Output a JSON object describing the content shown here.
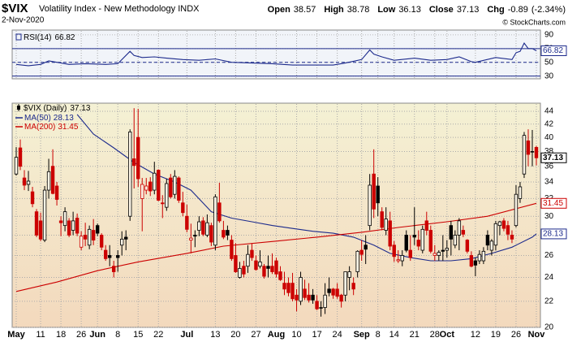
{
  "header": {
    "symbol": "$VIX",
    "name": "Volatility Index - New Methodology INDX",
    "date": "2-Nov-2020",
    "quote": [
      {
        "label": "Open",
        "value": 38.57
      },
      {
        "label": "High",
        "value": 38.78
      },
      {
        "label": "Low",
        "value": 36.13
      },
      {
        "label": "Close",
        "value": 37.13
      },
      {
        "label": "Chg",
        "value": -0.89
      }
    ],
    "change_pct": "(-2.34%)",
    "copyright": "© StockCharts.com"
  },
  "chart_data": [
    {
      "type": "line",
      "title": "RSI(14)",
      "color": "#1c2a8c",
      "ylim": [
        26,
        97
      ],
      "yticks": [
        30,
        50,
        70,
        90
      ],
      "levels": [
        {
          "value": 70,
          "style": "solid"
        },
        {
          "value": 50,
          "style": "dashed"
        },
        {
          "value": 30,
          "style": "solid"
        }
      ],
      "x": [
        "May 1",
        "May 6",
        "May 11",
        "May 13",
        "May 15",
        "May 20",
        "May 27",
        "Jun 3",
        "Jun 8",
        "Jun 11",
        "Jun 12",
        "Jun 16",
        "Jun 19",
        "Jun 24",
        "Jun 30",
        "Jul 7",
        "Jul 13",
        "Jul 17",
        "Jul 24",
        "Jul 31",
        "Aug 7",
        "Aug 14",
        "Aug 21",
        "Aug 26",
        "Sep 1",
        "Sep 3",
        "Sep 4",
        "Sep 9",
        "Sep 14",
        "Sep 21",
        "Sep 25",
        "Oct 1",
        "Oct 6",
        "Oct 9",
        "Oct 12",
        "Oct 19",
        "Oct 23",
        "Oct 26",
        "Oct 27",
        "Oct 28",
        "Oct 29",
        "Oct 30",
        "Nov 2"
      ],
      "values": [
        47,
        45,
        47,
        52,
        50,
        47,
        48,
        47,
        48,
        66,
        60,
        57,
        58,
        56,
        54,
        53,
        55,
        50,
        49,
        48,
        46,
        46,
        46,
        49,
        54,
        68,
        62,
        58,
        53,
        56,
        53,
        54,
        58,
        51,
        50,
        57,
        54,
        64,
        66,
        78,
        70,
        70,
        66.82
      ]
    },
    {
      "type": "candlestick",
      "name": "$VIX (Daily)",
      "log_scale": true,
      "grid": true,
      "up_color": "#000000",
      "down_color": "#cc0000",
      "ylim": [
        20,
        44
      ],
      "yticks": [
        20,
        22,
        24,
        26,
        28,
        30,
        32,
        34,
        36,
        38,
        40,
        42,
        44
      ],
      "categories": [
        "May 1",
        "May 4",
        "May 5",
        "May 6",
        "May 7",
        "May 8",
        "May 11",
        "May 12",
        "May 13",
        "May 14",
        "May 15",
        "May 18",
        "May 19",
        "May 20",
        "May 21",
        "May 22",
        "May 26",
        "May 27",
        "May 28",
        "May 29",
        "Jun 1",
        "Jun 2",
        "Jun 3",
        "Jun 4",
        "Jun 5",
        "Jun 8",
        "Jun 9",
        "Jun 10",
        "Jun 11",
        "Jun 12",
        "Jun 15",
        "Jun 16",
        "Jun 17",
        "Jun 18",
        "Jun 19",
        "Jun 22",
        "Jun 23",
        "Jun 24",
        "Jun 25",
        "Jun 26",
        "Jun 29",
        "Jun 30",
        "Jul 1",
        "Jul 2",
        "Jul 6",
        "Jul 7",
        "Jul 8",
        "Jul 9",
        "Jul 10",
        "Jul 13",
        "Jul 14",
        "Jul 15",
        "Jul 16",
        "Jul 17",
        "Jul 20",
        "Jul 21",
        "Jul 22",
        "Jul 23",
        "Jul 24",
        "Jul 27",
        "Jul 28",
        "Jul 29",
        "Jul 30",
        "Jul 31",
        "Aug 3",
        "Aug 4",
        "Aug 5",
        "Aug 6",
        "Aug 7",
        "Aug 10",
        "Aug 11",
        "Aug 12",
        "Aug 13",
        "Aug 14",
        "Aug 17",
        "Aug 18",
        "Aug 19",
        "Aug 20",
        "Aug 21",
        "Aug 24",
        "Aug 25",
        "Aug 26",
        "Aug 27",
        "Aug 28",
        "Aug 31",
        "Sep 1",
        "Sep 2",
        "Sep 3",
        "Sep 4",
        "Sep 8",
        "Sep 9",
        "Sep 10",
        "Sep 11",
        "Sep 14",
        "Sep 15",
        "Sep 16",
        "Sep 17",
        "Sep 18",
        "Sep 21",
        "Sep 22",
        "Sep 23",
        "Sep 24",
        "Sep 25",
        "Sep 28",
        "Sep 29",
        "Sep 30",
        "Oct 1",
        "Oct 2",
        "Oct 5",
        "Oct 6",
        "Oct 7",
        "Oct 8",
        "Oct 9",
        "Oct 12",
        "Oct 13",
        "Oct 14",
        "Oct 15",
        "Oct 16",
        "Oct 19",
        "Oct 20",
        "Oct 21",
        "Oct 22",
        "Oct 23",
        "Oct 26",
        "Oct 27",
        "Oct 28",
        "Oct 29",
        "Oct 30",
        "Nov 2"
      ],
      "xticks": [
        {
          "value": "May 1",
          "label": "May"
        },
        {
          "value": "May 11",
          "label": "11"
        },
        {
          "value": "May 18",
          "label": "18"
        },
        {
          "value": "May 26",
          "label": "26"
        },
        {
          "value": "Jun 1",
          "label": "Jun"
        },
        {
          "value": "Jun 8",
          "label": "8"
        },
        {
          "value": "Jun 15",
          "label": "15"
        },
        {
          "value": "Jun 22",
          "label": "22"
        },
        {
          "value": "Jul 1",
          "label": "Jul"
        },
        {
          "value": "Jul 13",
          "label": "13"
        },
        {
          "value": "Jul 20",
          "label": "20"
        },
        {
          "value": "Jul 27",
          "label": "27"
        },
        {
          "value": "Aug 3",
          "label": "Aug"
        },
        {
          "value": "Aug 10",
          "label": "10"
        },
        {
          "value": "Aug 17",
          "label": "17"
        },
        {
          "value": "Aug 24",
          "label": "24"
        },
        {
          "value": "Sep 1",
          "label": "Sep"
        },
        {
          "value": "Sep 8",
          "label": "8"
        },
        {
          "value": "Sep 14",
          "label": "14"
        },
        {
          "value": "Sep 21",
          "label": "21"
        },
        {
          "value": "Sep 28",
          "label": "28"
        },
        {
          "value": "Oct 1",
          "label": "Oct"
        },
        {
          "value": "Oct 12",
          "label": "12"
        },
        {
          "value": "Oct 19",
          "label": "19"
        },
        {
          "value": "Oct 26",
          "label": "26"
        },
        {
          "value": "Nov 2",
          "label": "Nov"
        }
      ],
      "open": [
        35.0,
        38.5,
        34.5,
        33.7,
        32.8,
        30.5,
        29.5,
        27.5,
        33.0,
        36.0,
        33.5,
        29.5,
        29.0,
        29.5,
        28.5,
        29.8,
        26.8,
        28.0,
        27.0,
        28.5,
        29.0,
        28.0,
        26.5,
        26.0,
        25.0,
        26.0,
        27.0,
        27.8,
        30.0,
        37.0,
        40.0,
        32.0,
        33.0,
        34.0,
        33.0,
        35.5,
        31.5,
        31.0,
        34.5,
        32.5,
        34.5,
        31.5,
        30.0,
        27.5,
        28.0,
        28.5,
        29.5,
        28.0,
        29.0,
        27.0,
        31.5,
        28.5,
        28.5,
        27.5,
        26.0,
        24.0,
        25.0,
        25.0,
        26.5,
        25.5,
        25.0,
        25.0,
        25.0,
        25.0,
        25.5,
        24.5,
        23.5,
        23.5,
        23.5,
        22.5,
        22.0,
        23.0,
        22.5,
        22.5,
        22.0,
        21.5,
        21.5,
        23.0,
        23.0,
        23.0,
        22.5,
        22.5,
        24.0,
        23.5,
        24.5,
        26.5,
        27.0,
        29.0,
        35.0,
        33.5,
        30.5,
        28.5,
        29.5,
        27.0,
        25.5,
        25.5,
        28.0,
        26.5,
        28.0,
        27.5,
        26.5,
        29.5,
        28.5,
        26.0,
        26.0,
        26.5,
        26.5,
        29.0,
        27.0,
        28.0,
        28.5,
        27.5,
        26.0,
        25.5,
        25.5,
        25.5,
        28.0,
        26.5,
        27.0,
        29.0,
        29.5,
        29.0,
        28.0,
        29.0,
        32.0,
        35.0,
        39.5,
        38.0,
        38.57
      ],
      "high": [
        38.6,
        39.7,
        35.5,
        35.4,
        33.4,
        30.8,
        30.4,
        33.5,
        37.0,
        38.3,
        34.0,
        30.0,
        31.0,
        29.8,
        30.5,
        30.3,
        28.4,
        29.3,
        29.0,
        29.7,
        29.2,
        28.2,
        27.0,
        27.0,
        25.5,
        26.5,
        28.4,
        28.5,
        41.2,
        44.5,
        44.4,
        34.5,
        34.5,
        34.6,
        36.6,
        35.6,
        32.4,
        34.4,
        35.0,
        35.5,
        34.7,
        32.8,
        31.3,
        29.2,
        28.5,
        30.0,
        29.9,
        30.2,
        29.3,
        32.5,
        33.9,
        29.5,
        29.0,
        28.0,
        27.2,
        25.4,
        25.5,
        27.0,
        27.2,
        26.0,
        26.5,
        25.2,
        26.0,
        26.2,
        25.8,
        25.0,
        24.5,
        24.0,
        24.4,
        23.0,
        24.5,
        23.8,
        23.5,
        23.0,
        22.5,
        22.0,
        23.5,
        24.0,
        23.1,
        23.5,
        22.6,
        24.5,
        25.0,
        24.0,
        26.5,
        27.5,
        28.0,
        35.0,
        38.3,
        34.6,
        31.0,
        31.0,
        30.5,
        27.4,
        26.5,
        26.5,
        28.5,
        28.0,
        31.0,
        28.5,
        29.0,
        30.5,
        29.0,
        27.0,
        26.5,
        28.0,
        27.5,
        29.5,
        28.5,
        29.8,
        29.0,
        27.6,
        26.4,
        25.8,
        26.5,
        26.8,
        28.5,
        27.6,
        29.5,
        29.5,
        29.8,
        29.5,
        28.5,
        33.6,
        34.0,
        40.8,
        41.2,
        41.1,
        38.78
      ],
      "low": [
        34.8,
        35.5,
        33.0,
        32.9,
        31.0,
        27.8,
        27.4,
        27.3,
        32.0,
        32.5,
        31.2,
        27.9,
        28.4,
        27.8,
        28.0,
        27.9,
        26.5,
        26.9,
        26.6,
        27.0,
        27.9,
        26.5,
        25.5,
        25.0,
        24.0,
        24.5,
        26.0,
        26.5,
        29.5,
        33.2,
        33.4,
        28.4,
        32.5,
        32.3,
        32.5,
        31.7,
        29.8,
        30.6,
        32.0,
        32.0,
        31.5,
        30.0,
        28.3,
        26.2,
        26.8,
        27.9,
        27.9,
        27.8,
        26.9,
        26.5,
        29.3,
        27.6,
        27.5,
        25.5,
        24.4,
        23.9,
        24.0,
        24.4,
        25.5,
        24.6,
        24.8,
        23.9,
        24.0,
        24.3,
        24.0,
        23.7,
        22.5,
        22.4,
        22.0,
        21.2,
        21.7,
        22.1,
        21.9,
        21.8,
        21.3,
        20.8,
        21.0,
        22.4,
        22.2,
        22.2,
        21.5,
        22.0,
        22.9,
        22.5,
        24.0,
        25.5,
        25.2,
        28.5,
        29.8,
        30.0,
        28.5,
        28.0,
        26.5,
        25.4,
        25.3,
        25.0,
        26.3,
        25.5,
        27.0,
        26.5,
        26.2,
        28.0,
        26.2,
        25.5,
        25.5,
        25.5,
        25.8,
        26.0,
        26.7,
        26.5,
        27.8,
        26.2,
        24.9,
        24.1,
        25.2,
        25.2,
        26.5,
        26.0,
        26.5,
        28.0,
        28.4,
        27.5,
        27.2,
        28.8,
        31.5,
        34.5,
        36.0,
        36.0,
        36.13
      ],
      "close": [
        37.2,
        36.0,
        33.6,
        34.1,
        31.4,
        28.0,
        27.6,
        33.0,
        35.3,
        32.6,
        31.9,
        29.3,
        30.5,
        28.0,
        29.5,
        28.2,
        27.9,
        27.6,
        28.6,
        27.5,
        28.2,
        26.8,
        25.7,
        25.8,
        24.5,
        25.8,
        27.6,
        27.6,
        40.8,
        36.1,
        34.4,
        33.7,
        33.5,
        32.9,
        35.1,
        31.8,
        31.4,
        33.8,
        32.2,
        34.7,
        31.8,
        30.4,
        28.6,
        27.7,
        27.9,
        29.4,
        28.1,
        29.3,
        27.3,
        32.2,
        29.5,
        27.8,
        28.0,
        25.7,
        24.5,
        24.8,
        24.3,
        26.1,
        25.8,
        24.7,
        25.4,
        24.1,
        24.8,
        24.5,
        24.3,
        23.8,
        23.0,
        22.7,
        22.2,
        22.1,
        24.0,
        22.3,
        22.1,
        22.1,
        21.4,
        21.5,
        22.5,
        22.7,
        22.5,
        22.4,
        22.0,
        24.5,
        24.5,
        23.0,
        26.4,
        26.1,
        26.6,
        33.6,
        30.8,
        31.5,
        28.8,
        29.7,
        26.9,
        25.9,
        25.6,
        26.0,
        26.5,
        25.8,
        27.8,
        26.9,
        28.6,
        28.5,
        26.4,
        26.2,
        26.3,
        26.4,
        26.7,
        27.6,
        28.0,
        29.5,
        28.1,
        26.4,
        25.0,
        25.1,
        26.1,
        26.4,
        27.0,
        27.4,
        29.2,
        29.4,
        28.7,
        28.1,
        27.6,
        32.5,
        33.4,
        40.3,
        37.6,
        38.0,
        37.13
      ],
      "series": [
        {
          "name": "MA(50)",
          "color": "#1c2a8c",
          "x": [
            "May 22",
            "May 29",
            "Jun 5",
            "Jun 12",
            "Jun 19",
            "Jun 26",
            "Jul 2",
            "Jul 10",
            "Jul 17",
            "Jul 24",
            "Jul 31",
            "Aug 7",
            "Aug 14",
            "Aug 21",
            "Aug 28",
            "Sep 4",
            "Sep 11",
            "Sep 18",
            "Sep 25",
            "Oct 2",
            "Oct 9",
            "Oct 16",
            "Oct 23",
            "Oct 30",
            "Nov 2"
          ],
          "values": [
            43.5,
            40.5,
            38.5,
            36.5,
            35,
            34,
            33,
            30.5,
            29.8,
            29.4,
            29,
            28.7,
            28.4,
            28.2,
            27.8,
            27,
            26.2,
            25.8,
            25.5,
            25.5,
            25.7,
            26.2,
            26.8,
            27.8,
            28.13
          ]
        },
        {
          "name": "MA(200)",
          "color": "#cc0000",
          "x": [
            "May 1",
            "May 15",
            "Jun 1",
            "Jun 15",
            "Jul 1",
            "Jul 15",
            "Aug 3",
            "Aug 17",
            "Sep 1",
            "Sep 15",
            "Oct 1",
            "Oct 15",
            "Nov 2"
          ],
          "values": [
            22.8,
            23.6,
            24.6,
            25.4,
            26.2,
            26.9,
            27.4,
            27.8,
            28.3,
            28.8,
            29.4,
            30.0,
            31.45
          ]
        }
      ]
    }
  ]
}
